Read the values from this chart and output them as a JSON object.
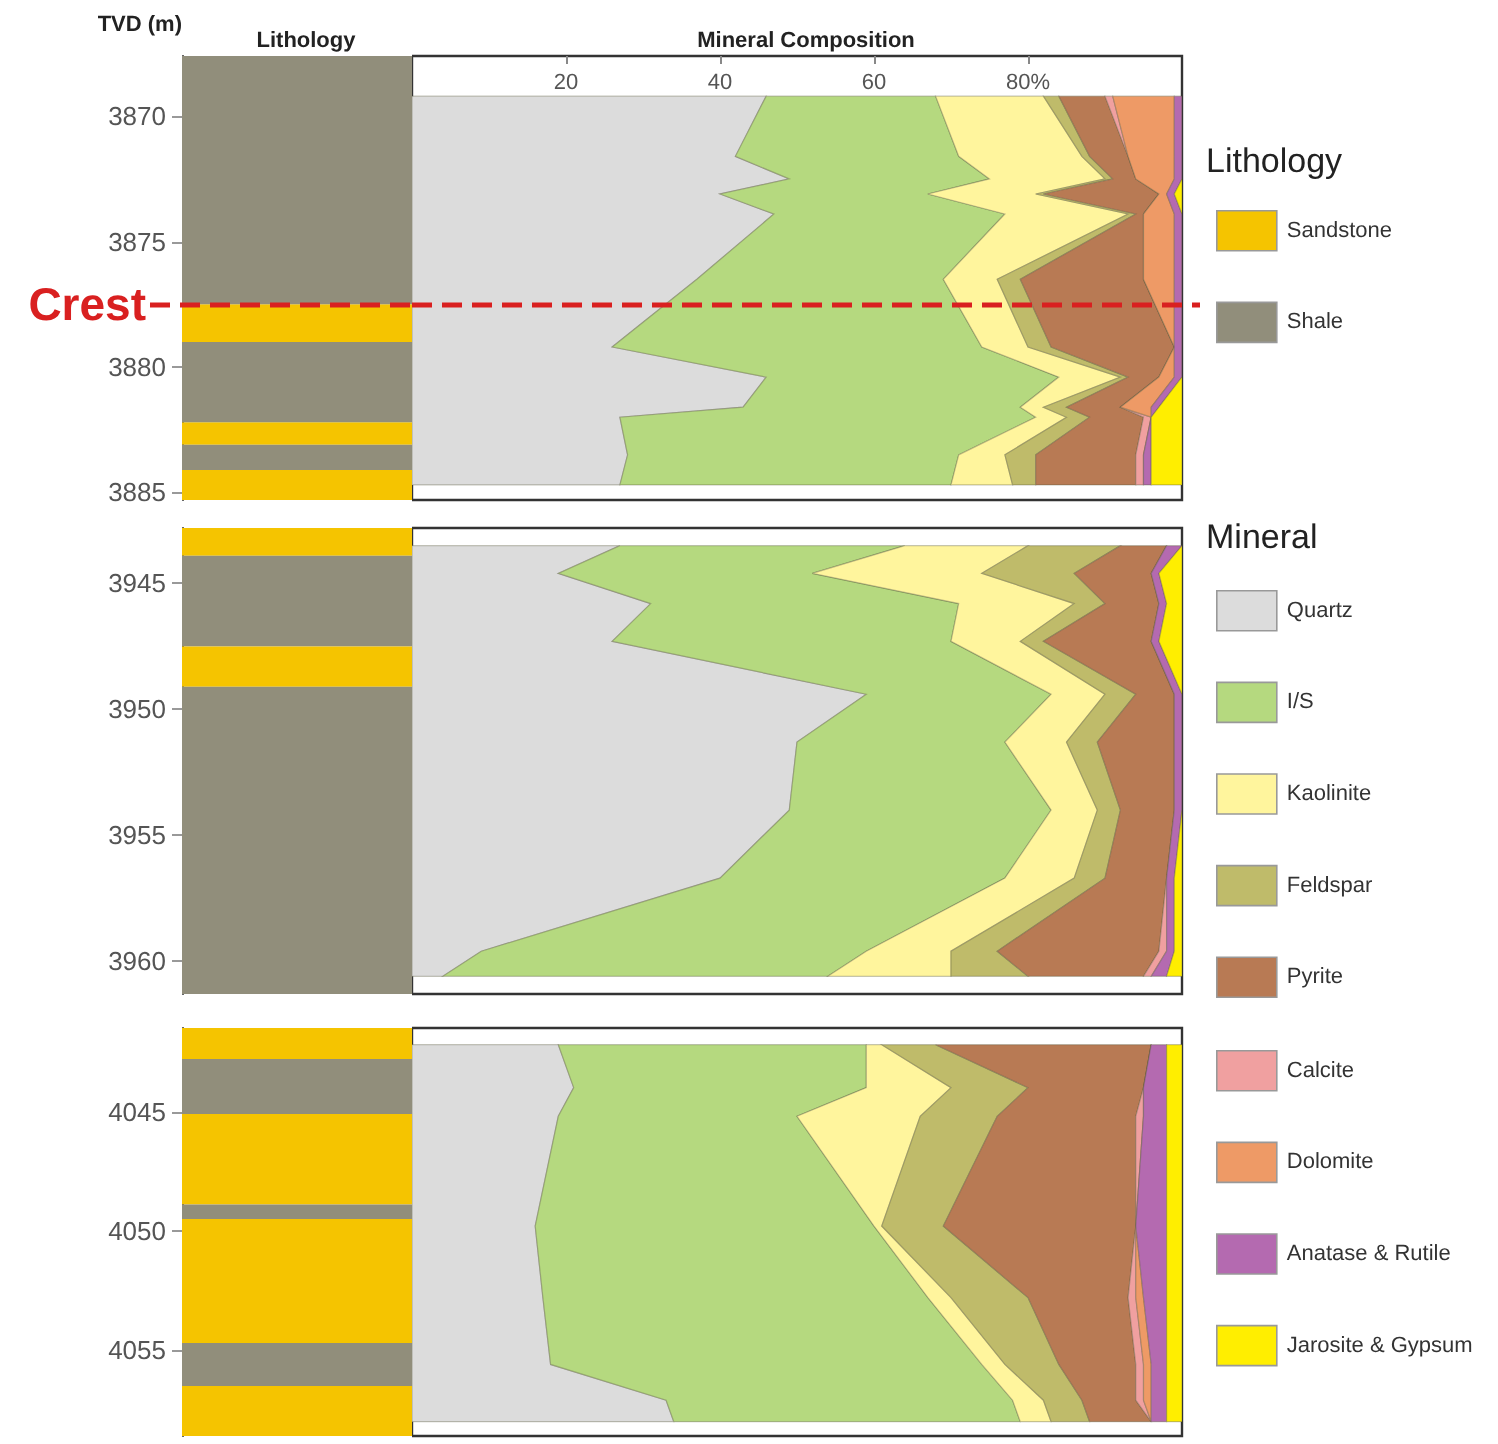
{
  "chart_data": [
    {
      "type": "bar",
      "title": "Lithology",
      "ylabel": "TVD (m)",
      "legend": "right",
      "legend_title": "Lithology",
      "tick_labels": "y",
      "categories": [
        null
      ],
      "ylim": [
        3885.3,
        3867.6
      ],
      "yticks": [
        3870,
        3875,
        3880,
        3885
      ],
      "series": [
        {
          "name": "Sandstone",
          "color": "#f5c400",
          "values": [
            1.5
          ],
          "base": [
            3877.5
          ]
        },
        {
          "color": "#f5c400",
          "values": [
            0.9
          ],
          "base": [
            3882.2
          ]
        },
        {
          "color": "#f5c400",
          "values": [
            1.2
          ],
          "base": [
            3884.1
          ]
        },
        {
          "name": "Shale",
          "color": "#918e7b",
          "values": [
            9.9
          ],
          "base": [
            3867.6
          ]
        },
        {
          "color": "#918e7b",
          "values": [
            3.2
          ],
          "base": [
            3879.0
          ]
        },
        {
          "color": "#918e7b",
          "values": [
            1.0
          ],
          "base": [
            3883.1
          ]
        }
      ],
      "ref_lines": [
        {
          "axis": "y",
          "value": 3877.5,
          "label": "Crest",
          "color": "#d92020",
          "line_style": "dashed"
        }
      ]
    },
    {
      "type": "area",
      "orientation": "horizontal",
      "stacked": true,
      "title": "Mineral Composition",
      "tick_labels": "x",
      "x": [
        3869.2,
        3871.6,
        3872.5,
        3873.1,
        3873.9,
        3876.5,
        3879.2,
        3880.4,
        3881.6,
        3882.0,
        3883.5,
        3884.7
      ],
      "xlim": [
        0,
        100
      ],
      "xticks": [
        20,
        40,
        60,
        {
          "value": 80,
          "label": "80%"
        }
      ],
      "ylim": [
        3885.3,
        3867.6
      ],
      "series": [
        {
          "color": "#dcdcdc",
          "values": [
            46,
            42,
            49,
            40,
            47,
            37,
            26,
            46,
            43,
            27,
            28,
            27
          ]
        },
        {
          "color": "#b5d97f",
          "values": [
            22,
            29,
            26,
            27,
            30,
            32,
            48,
            38,
            36,
            54,
            43,
            43
          ]
        },
        {
          "color": "#fff59d",
          "values": [
            14,
            16,
            15,
            14,
            16,
            7,
            6,
            8,
            3,
            4,
            6,
            8
          ]
        },
        {
          "color": "#bfbb6a",
          "values": [
            2,
            1,
            1,
            1,
            1,
            3,
            3,
            1,
            3,
            3,
            4,
            3
          ]
        },
        {
          "color": "#b87a54",
          "values": [
            6,
            5,
            3,
            15,
            1,
            16,
            16,
            4,
            7,
            7,
            13,
            13
          ]
        },
        {
          "color": "#f0a0a0",
          "values": [
            1,
            0,
            0,
            0,
            0,
            0,
            0,
            0,
            0,
            1,
            1,
            1
          ]
        },
        {
          "color": "#ee9a66",
          "values": [
            8,
            6,
            5,
            1,
            4,
            4,
            0,
            2,
            4,
            0,
            0,
            0
          ]
        },
        {
          "color": "#b46ab0",
          "values": [
            1,
            1,
            1,
            1,
            1,
            1,
            1,
            1,
            1,
            0,
            1,
            1
          ]
        },
        {
          "color": "#ffee00",
          "values": [
            0,
            0,
            0,
            1,
            0,
            0,
            0,
            0,
            3,
            4,
            4,
            4
          ]
        }
      ],
      "ref_lines": [
        {
          "axis": "y",
          "value": 3877.5,
          "color": "#d92020",
          "line_style": "dashed"
        }
      ]
    },
    {
      "type": "bar",
      "tick_labels": "y",
      "categories": [
        null
      ],
      "ylim": [
        3961.3,
        3942.8
      ],
      "yticks": [
        3945,
        3950,
        3955,
        3960
      ],
      "series": [
        {
          "color": "#f5c400",
          "values": [
            1.1
          ],
          "base": [
            3942.8
          ]
        },
        {
          "color": "#918e7b",
          "values": [
            3.6
          ],
          "base": [
            3943.9
          ]
        },
        {
          "color": "#f5c400",
          "values": [
            1.6
          ],
          "base": [
            3947.5
          ]
        },
        {
          "color": "#918e7b",
          "values": [
            12.2
          ],
          "base": [
            3949.1
          ]
        }
      ]
    },
    {
      "type": "area",
      "orientation": "horizontal",
      "stacked": true,
      "tick_labels": false,
      "legend": "right",
      "legend_title": "Mineral",
      "x": [
        3943.5,
        3944.6,
        3945.8,
        3947.3,
        3949.4,
        3951.3,
        3954.0,
        3956.7,
        3959.6,
        3960.6
      ],
      "xlim": [
        0,
        100
      ],
      "ylim": [
        3961.3,
        3942.8
      ],
      "series": [
        {
          "name": "Quartz",
          "color": "#dcdcdc",
          "values": [
            27,
            19,
            31,
            26,
            59,
            50,
            49,
            40,
            9,
            4
          ]
        },
        {
          "name": "I/S",
          "color": "#b5d97f",
          "values": [
            37,
            33,
            40,
            44,
            24,
            27,
            34,
            37,
            50,
            50
          ]
        },
        {
          "name": "Kaolinite",
          "color": "#fff59d",
          "values": [
            16,
            22,
            15,
            9,
            7,
            8,
            6,
            9,
            11,
            16
          ]
        },
        {
          "name": "Feldspar",
          "color": "#bfbb6a",
          "values": [
            12,
            12,
            4,
            3,
            4,
            4,
            3,
            4,
            6,
            10
          ]
        },
        {
          "name": "Pyrite",
          "color": "#b87a54",
          "values": [
            6,
            10,
            7,
            14,
            5,
            10,
            7,
            8,
            21,
            15
          ]
        },
        {
          "color": "#f0a0a0",
          "values": [
            0,
            0,
            0,
            0,
            0,
            0,
            0,
            0,
            1,
            1
          ]
        },
        {
          "color": "#b46ab0",
          "values": [
            2,
            1,
            1,
            1,
            1,
            1,
            1,
            1,
            1,
            2
          ]
        },
        {
          "color": "#ffee00",
          "values": [
            0,
            3,
            2,
            3,
            0,
            0,
            0,
            1,
            1,
            2
          ]
        }
      ]
    },
    {
      "type": "bar",
      "tick_labels": "y",
      "categories": [
        null
      ],
      "ylim": [
        4058.6,
        4041.5
      ],
      "yticks": [
        4045,
        4050,
        4055
      ],
      "series": [
        {
          "color": "#f5c400",
          "values": [
            1.3
          ],
          "base": [
            4041.5
          ]
        },
        {
          "color": "#918e7b",
          "values": [
            2.3
          ],
          "base": [
            4042.8
          ]
        },
        {
          "color": "#f5c400",
          "values": [
            3.8
          ],
          "base": [
            4045.1
          ]
        },
        {
          "color": "#918e7b",
          "values": [
            0.6
          ],
          "base": [
            4048.9
          ]
        },
        {
          "color": "#f5c400",
          "values": [
            5.2
          ],
          "base": [
            4049.5
          ]
        },
        {
          "color": "#918e7b",
          "values": [
            1.8
          ],
          "base": [
            4054.7
          ]
        },
        {
          "color": "#f5c400",
          "values": [
            2.1
          ],
          "base": [
            4056.5
          ]
        }
      ]
    },
    {
      "type": "area",
      "orientation": "horizontal",
      "stacked": true,
      "tick_labels": false,
      "legend": "right",
      "x": [
        4042.2,
        4044.0,
        4045.2,
        4049.8,
        4052.8,
        4055.6,
        4057.1,
        4058.0
      ],
      "xlim": [
        0,
        100
      ],
      "ylim": [
        4058.6,
        4041.5
      ],
      "series": [
        {
          "color": "#dcdcdc",
          "values": [
            19,
            21,
            19,
            16,
            17,
            18,
            33,
            34
          ]
        },
        {
          "color": "#b5d97f",
          "values": [
            40,
            38,
            31,
            44,
            50,
            56,
            45,
            45
          ]
        },
        {
          "color": "#fff59d",
          "values": [
            2,
            11,
            16,
            1,
            3,
            3,
            4,
            4
          ]
        },
        {
          "color": "#bfbb6a",
          "values": [
            7,
            10,
            10,
            8,
            10,
            7,
            5,
            5
          ]
        },
        {
          "color": "#b87a54",
          "values": [
            28,
            15,
            18,
            25,
            13,
            10,
            7,
            8
          ]
        },
        {
          "name": "Calcite",
          "color": "#f0a0a0",
          "values": [
            0,
            0,
            1,
            0,
            1,
            1,
            1,
            0
          ]
        },
        {
          "name": "Dolomite",
          "color": "#ee9a66",
          "values": [
            0,
            0,
            0,
            0,
            1,
            1,
            1,
            0
          ]
        },
        {
          "name": "Anatase & Rutile",
          "color": "#b46ab0",
          "values": [
            2,
            3,
            3,
            4,
            3,
            2,
            2,
            2
          ]
        },
        {
          "name": "Jarosite & Gypsum",
          "color": "#ffee00",
          "values": [
            2,
            2,
            2,
            2,
            2,
            2,
            2,
            2
          ]
        }
      ]
    }
  ]
}
